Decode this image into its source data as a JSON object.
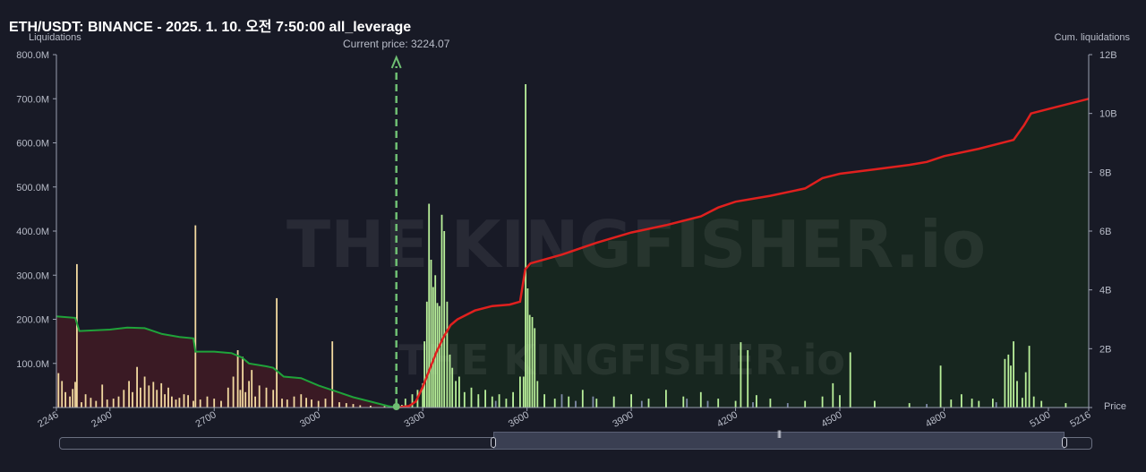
{
  "title": "ETH/USDT: BINANCE - 2025. 1. 10. 오전 7:50:00 all_leverage",
  "chart_data": {
    "type": "bar",
    "x_range": [
      2246,
      5216
    ],
    "x_ticks": [
      2246,
      2400,
      2700,
      3000,
      3300,
      3600,
      3900,
      4200,
      4500,
      4800,
      5100,
      5216
    ],
    "xlabel": "Price",
    "ylabel_left": "Liquidations",
    "ylabel_right": "Cum. liquidations",
    "y_left_range": [
      0,
      800
    ],
    "y_left_ticks": [
      "",
      "100.0M",
      "200.0M",
      "300.0M",
      "400.0M",
      "500.0M",
      "600.0M",
      "700.0M",
      "800.0M"
    ],
    "y_right_range": [
      0,
      12
    ],
    "y_right_ticks": [
      "",
      "2B",
      "4B",
      "6B",
      "8B",
      "10B",
      "12B"
    ],
    "current_price_label": "Current price: 3224.07",
    "current_price": 3224.07,
    "short_cum_liquidations_B": [
      [
        2246,
        3.1
      ],
      [
        2300,
        3.05
      ],
      [
        2312,
        2.6
      ],
      [
        2400,
        2.65
      ],
      [
        2450,
        2.72
      ],
      [
        2500,
        2.7
      ],
      [
        2550,
        2.5
      ],
      [
        2600,
        2.4
      ],
      [
        2640,
        2.35
      ],
      [
        2646,
        1.9
      ],
      [
        2700,
        1.9
      ],
      [
        2750,
        1.85
      ],
      [
        2780,
        1.7
      ],
      [
        2800,
        1.5
      ],
      [
        2850,
        1.4
      ],
      [
        2870,
        1.35
      ],
      [
        2900,
        1.05
      ],
      [
        2950,
        1.0
      ],
      [
        3000,
        0.75
      ],
      [
        3050,
        0.55
      ],
      [
        3100,
        0.35
      ],
      [
        3150,
        0.2
      ],
      [
        3200,
        0.05
      ],
      [
        3224,
        0
      ]
    ],
    "long_cum_liquidations_B": [
      [
        3224,
        0
      ],
      [
        3260,
        0.05
      ],
      [
        3280,
        0.2
      ],
      [
        3300,
        0.7
      ],
      [
        3320,
        1.3
      ],
      [
        3340,
        1.9
      ],
      [
        3360,
        2.4
      ],
      [
        3380,
        2.8
      ],
      [
        3400,
        3.0
      ],
      [
        3450,
        3.3
      ],
      [
        3500,
        3.45
      ],
      [
        3550,
        3.5
      ],
      [
        3580,
        3.6
      ],
      [
        3595,
        4.7
      ],
      [
        3610,
        4.9
      ],
      [
        3700,
        5.2
      ],
      [
        3800,
        5.6
      ],
      [
        3900,
        5.95
      ],
      [
        4000,
        6.2
      ],
      [
        4100,
        6.5
      ],
      [
        4150,
        6.8
      ],
      [
        4200,
        7.0
      ],
      [
        4300,
        7.2
      ],
      [
        4400,
        7.45
      ],
      [
        4450,
        7.8
      ],
      [
        4500,
        7.95
      ],
      [
        4600,
        8.1
      ],
      [
        4700,
        8.25
      ],
      [
        4750,
        8.35
      ],
      [
        4800,
        8.55
      ],
      [
        4900,
        8.8
      ],
      [
        5000,
        9.1
      ],
      [
        5030,
        9.6
      ],
      [
        5050,
        10.0
      ],
      [
        5100,
        10.15
      ],
      [
        5216,
        10.5
      ]
    ],
    "short_bars_M": [
      [
        2252,
        78
      ],
      [
        2262,
        60
      ],
      [
        2272,
        35
      ],
      [
        2285,
        25
      ],
      [
        2293,
        42
      ],
      [
        2300,
        58
      ],
      [
        2305,
        325
      ],
      [
        2318,
        12
      ],
      [
        2330,
        30
      ],
      [
        2345,
        22
      ],
      [
        2360,
        15
      ],
      [
        2378,
        52
      ],
      [
        2392,
        18
      ],
      [
        2410,
        20
      ],
      [
        2425,
        25
      ],
      [
        2440,
        40
      ],
      [
        2455,
        60
      ],
      [
        2465,
        35
      ],
      [
        2478,
        92
      ],
      [
        2488,
        45
      ],
      [
        2500,
        70
      ],
      [
        2512,
        50
      ],
      [
        2525,
        58
      ],
      [
        2535,
        40
      ],
      [
        2548,
        55
      ],
      [
        2558,
        30
      ],
      [
        2568,
        45
      ],
      [
        2578,
        25
      ],
      [
        2590,
        18
      ],
      [
        2600,
        22
      ],
      [
        2613,
        30
      ],
      [
        2625,
        28
      ],
      [
        2640,
        15
      ],
      [
        2646,
        413
      ],
      [
        2660,
        18
      ],
      [
        2680,
        25
      ],
      [
        2700,
        20
      ],
      [
        2720,
        15
      ],
      [
        2740,
        45
      ],
      [
        2755,
        70
      ],
      [
        2768,
        130
      ],
      [
        2775,
        40
      ],
      [
        2782,
        115
      ],
      [
        2790,
        35
      ],
      [
        2800,
        60
      ],
      [
        2808,
        85
      ],
      [
        2818,
        25
      ],
      [
        2830,
        50
      ],
      [
        2850,
        45
      ],
      [
        2870,
        40
      ],
      [
        2880,
        248
      ],
      [
        2895,
        20
      ],
      [
        2910,
        18
      ],
      [
        2930,
        25
      ],
      [
        2950,
        30
      ],
      [
        2965,
        22
      ],
      [
        2980,
        18
      ],
      [
        3000,
        15
      ],
      [
        3020,
        20
      ],
      [
        3040,
        150
      ],
      [
        3060,
        12
      ],
      [
        3080,
        10
      ],
      [
        3100,
        8
      ],
      [
        3120,
        5
      ],
      [
        3150,
        4
      ],
      [
        3190,
        3
      ]
    ],
    "long_bars_M": [
      [
        3240,
        6
      ],
      [
        3250,
        20
      ],
      [
        3270,
        30
      ],
      [
        3285,
        40
      ],
      [
        3300,
        55
      ],
      [
        3305,
        150
      ],
      [
        3312,
        240
      ],
      [
        3318,
        462
      ],
      [
        3324,
        335
      ],
      [
        3330,
        273
      ],
      [
        3336,
        300
      ],
      [
        3342,
        237
      ],
      [
        3348,
        230
      ],
      [
        3355,
        437
      ],
      [
        3362,
        400
      ],
      [
        3370,
        240
      ],
      [
        3378,
        120
      ],
      [
        3385,
        90
      ],
      [
        3395,
        60
      ],
      [
        3405,
        70
      ],
      [
        3420,
        35
      ],
      [
        3440,
        45
      ],
      [
        3460,
        30
      ],
      [
        3480,
        40
      ],
      [
        3500,
        25
      ],
      [
        3520,
        30
      ],
      [
        3540,
        20
      ],
      [
        3560,
        35
      ],
      [
        3580,
        70
      ],
      [
        3590,
        70
      ],
      [
        3596,
        733
      ],
      [
        3602,
        270
      ],
      [
        3608,
        210
      ],
      [
        3615,
        205
      ],
      [
        3622,
        180
      ],
      [
        3630,
        60
      ],
      [
        3650,
        30
      ],
      [
        3680,
        20
      ],
      [
        3720,
        25
      ],
      [
        3760,
        40
      ],
      [
        3800,
        20
      ],
      [
        3850,
        25
      ],
      [
        3900,
        30
      ],
      [
        3950,
        20
      ],
      [
        4000,
        40
      ],
      [
        4050,
        25
      ],
      [
        4100,
        35
      ],
      [
        4150,
        20
      ],
      [
        4200,
        15
      ],
      [
        4215,
        148
      ],
      [
        4235,
        130
      ],
      [
        4260,
        28
      ],
      [
        4300,
        20
      ],
      [
        4400,
        15
      ],
      [
        4450,
        25
      ],
      [
        4480,
        55
      ],
      [
        4500,
        28
      ],
      [
        4530,
        125
      ],
      [
        4600,
        15
      ],
      [
        4700,
        10
      ],
      [
        4790,
        95
      ],
      [
        4820,
        18
      ],
      [
        4850,
        30
      ],
      [
        4880,
        20
      ],
      [
        4900,
        15
      ],
      [
        4940,
        20
      ],
      [
        4975,
        110
      ],
      [
        4985,
        120
      ],
      [
        4992,
        95
      ],
      [
        5000,
        150
      ],
      [
        5010,
        60
      ],
      [
        5025,
        22
      ],
      [
        5035,
        80
      ],
      [
        5045,
        140
      ],
      [
        5058,
        25
      ],
      [
        5080,
        15
      ],
      [
        5150,
        10
      ]
    ],
    "gray_bars_M": [
      [
        3460,
        20
      ],
      [
        3510,
        15
      ],
      [
        3560,
        25
      ],
      [
        3650,
        20
      ],
      [
        3700,
        30
      ],
      [
        3740,
        15
      ],
      [
        3790,
        25
      ],
      [
        3850,
        20
      ],
      [
        3930,
        15
      ],
      [
        4000,
        12
      ],
      [
        4060,
        20
      ],
      [
        4120,
        15
      ],
      [
        4250,
        12
      ],
      [
        4350,
        10
      ],
      [
        4600,
        10
      ],
      [
        4750,
        8
      ],
      [
        4880,
        10
      ],
      [
        4950,
        12
      ]
    ],
    "watermarks": [
      "THE KINGFISHER.io",
      "THE KINGFISHER.io"
    ]
  },
  "colors": {
    "background": "#181a26",
    "short_fill": "#3a1a24",
    "short_line": "#1fa33a",
    "long_fill": "#17261f",
    "long_line": "#e0201e",
    "short_bar": "#f2d9a0",
    "long_bar": "#b9f09a",
    "gray_bar": "#7f8aa8",
    "current_price": "#6fbf73"
  }
}
